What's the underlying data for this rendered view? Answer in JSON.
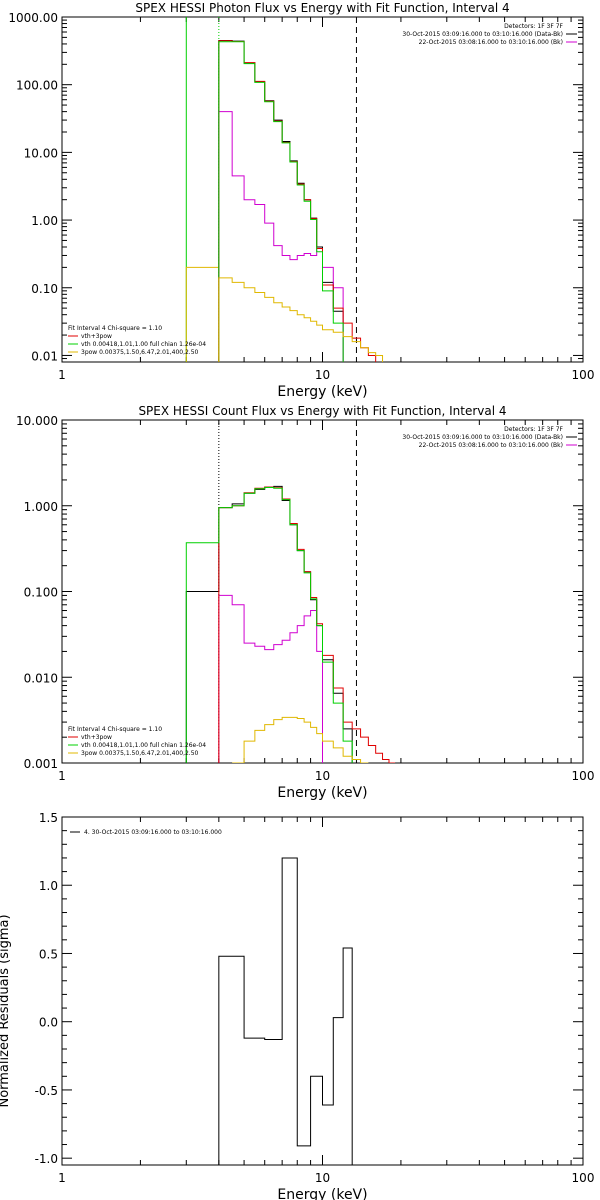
{
  "colors": {
    "black": "#000000",
    "red": "#e00000",
    "green": "#00d000",
    "magenta": "#d000d0",
    "yellow": "#e0b800"
  },
  "chart_data": [
    {
      "type": "line",
      "title": "SPEX HESSI Photon Flux vs Energy with Fit Function, Interval 4",
      "xlabel": "Energy (keV)",
      "ylabel": "",
      "xscale": "log",
      "yscale": "log",
      "xlim": [
        1,
        100
      ],
      "ylim": [
        0.008,
        1000
      ],
      "xticks": [
        {
          "v": 1,
          "label": "1"
        },
        {
          "v": 10,
          "label": "10"
        },
        {
          "v": 100,
          "label": "100"
        }
      ],
      "yticks": [
        {
          "v": 0.01,
          "label": "0.01"
        },
        {
          "v": 0.1,
          "label": "0.10"
        },
        {
          "v": 1,
          "label": "1.00"
        },
        {
          "v": 10,
          "label": "10.00"
        },
        {
          "v": 100,
          "label": "100.00"
        },
        {
          "v": 1000,
          "label": "1000.00"
        }
      ],
      "header_lines": [
        "Detectors: 1F 3F 7F",
        "30-Oct-2015 03:09:16.000 to 03:10:16.000 (Data-Bk)",
        "22-Oct-2015 03:08:16.000 to 03:10:16.000 (Bk)"
      ],
      "fit_legend": {
        "header": "Fit Interval 4   Chi-square = 1.10",
        "items": [
          {
            "label": "vth+3pow",
            "color": "#e00000"
          },
          {
            "label": "vth 0.00418,1.01,1.00  full chian 1.26e-04",
            "color": "#00d000"
          },
          {
            "label": "3pow 0.00375,1.50,6.47,2.01,400,2.50",
            "color": "#e0b800"
          }
        ]
      },
      "vlines": [
        {
          "x": 3.0,
          "color": "#00d000",
          "style": "solid"
        },
        {
          "x": 4.0,
          "color": "#00d000",
          "style": "dotted"
        },
        {
          "x": 13.5,
          "color": "#000000",
          "style": "dashed"
        }
      ],
      "edges": [
        4.0,
        4.5,
        5.0,
        5.5,
        6.0,
        6.5,
        7.0,
        7.5,
        8.0,
        8.5,
        9.0,
        9.5,
        10.0,
        11.0,
        12.0,
        13.0,
        14.0,
        15.0,
        16.0,
        17.0,
        18.0
      ],
      "series": [
        {
          "name": "Data-Bk",
          "color": "#000000",
          "start": 0,
          "values": [
            450,
            440,
            210,
            110,
            58,
            30,
            14.5,
            7.5,
            3.5,
            2.0,
            1.07,
            0.4,
            0.12,
            0.045
          ]
        },
        {
          "color": "#d000d0",
          "start": 0,
          "values": [
            40,
            4.5,
            2.0,
            1.7,
            0.9,
            0.42,
            0.3,
            0.26,
            0.3,
            0.32,
            0.3,
            0.38,
            0.2,
            0.1
          ]
        },
        {
          "color": "#e00000",
          "start": 0,
          "values": [
            445,
            435,
            212,
            112,
            57,
            29,
            14.0,
            7.3,
            3.4,
            2.0,
            1.05,
            0.38,
            0.11,
            0.05,
            0.03,
            0.018,
            0.013,
            0.01
          ]
        },
        {
          "color": "#00d000",
          "start": 0,
          "values": [
            430,
            430,
            205,
            108,
            56,
            28.5,
            13.8,
            7.2,
            3.3,
            1.9,
            1.02,
            0.34,
            0.09,
            0.03
          ]
        },
        {
          "color": "#e0b800",
          "start": 0,
          "values": [
            0.14,
            0.12,
            0.1,
            0.085,
            0.072,
            0.06,
            0.052,
            0.046,
            0.04,
            0.036,
            0.032,
            0.028,
            0.024,
            0.022,
            0.019,
            0.016,
            0.013,
            0.011,
            0.01
          ]
        }
      ],
      "pre_steps": [
        {
          "color": "#e0b800",
          "x0": 3.0,
          "x1": 4.0,
          "y": 0.2
        }
      ]
    },
    {
      "type": "line",
      "title": "SPEX HESSI Count Flux vs Energy with Fit Function, Interval 4",
      "xlabel": "Energy (keV)",
      "ylabel": "",
      "xscale": "log",
      "yscale": "log",
      "xlim": [
        1,
        100
      ],
      "ylim": [
        0.001,
        10
      ],
      "xticks": [
        {
          "v": 1,
          "label": "1"
        },
        {
          "v": 10,
          "label": "10"
        },
        {
          "v": 100,
          "label": "100"
        }
      ],
      "yticks": [
        {
          "v": 0.001,
          "label": "0.001"
        },
        {
          "v": 0.01,
          "label": "0.010"
        },
        {
          "v": 0.1,
          "label": "0.100"
        },
        {
          "v": 1,
          "label": "1.000"
        },
        {
          "v": 10,
          "label": "10.000"
        }
      ],
      "header_lines": [
        "Detectors: 1F 3F 7F",
        "30-Oct-2015 03:09:16.000 to 03:10:16.000 (Data-Bk)",
        "22-Oct-2015 03:08:16.000 to 03:10:16.000 (Bk)"
      ],
      "fit_legend": {
        "header": "Fit Interval 4   Chi-square = 1.10",
        "items": [
          {
            "label": "vth+3pow",
            "color": "#e00000"
          },
          {
            "label": "vth 0.00418,1.01,1.00  full chian 1.26e-04",
            "color": "#00d000"
          },
          {
            "label": "3pow 0.00375,1.50,6.47,2.01,400,2.50",
            "color": "#e0b800"
          }
        ]
      },
      "vlines": [
        {
          "x": 4.0,
          "color": "#000000",
          "style": "dotted"
        },
        {
          "x": 13.5,
          "color": "#000000",
          "style": "dashed"
        }
      ],
      "edges": [
        3.0,
        4.0,
        4.5,
        5.0,
        5.5,
        6.0,
        6.5,
        7.0,
        7.5,
        8.0,
        8.5,
        9.0,
        9.5,
        10.0,
        11.0,
        12.0,
        13.0,
        14.0,
        15.0,
        16.0,
        17.0,
        18.0,
        19.0,
        20.0
      ],
      "series": [
        {
          "name": "Data-Bk",
          "color": "#000000",
          "start": 0,
          "values": [
            0.1,
            0.95,
            1.05,
            1.4,
            1.55,
            1.65,
            1.68,
            1.15,
            0.6,
            0.3,
            0.17,
            0.08,
            0.04,
            0.016,
            0.0065,
            0.0025
          ]
        },
        {
          "color": "#d000d0",
          "start": 1,
          "values": [
            0.09,
            0.07,
            0.025,
            0.023,
            0.021,
            0.024,
            0.027,
            0.033,
            0.04,
            0.052,
            0.06,
            0.02
          ]
        },
        {
          "color": "#e00000",
          "start": 1,
          "values": [
            0.95,
            1.0,
            1.42,
            1.6,
            1.65,
            1.62,
            1.2,
            0.62,
            0.31,
            0.17,
            0.085,
            0.042,
            0.018,
            0.0075,
            0.003,
            0.0025,
            0.002,
            0.0016,
            0.0013,
            0.0011,
            0.001
          ]
        },
        {
          "color": "#00d000",
          "start": 0,
          "values": [
            0.37,
            0.95,
            1.0,
            1.4,
            1.58,
            1.63,
            1.6,
            1.18,
            0.6,
            0.3,
            0.165,
            0.082,
            0.04,
            0.015,
            0.005,
            0.0018
          ]
        },
        {
          "color": "#e0b800",
          "start": 2,
          "values": [
            0.001,
            0.0018,
            0.0024,
            0.0028,
            0.0032,
            0.0034,
            0.0034,
            0.0033,
            0.003,
            0.0026,
            0.0022,
            0.0018,
            0.0015,
            0.0012,
            0.0011,
            0.001
          ]
        }
      ],
      "pre_steps": []
    },
    {
      "type": "line",
      "title": "",
      "xlabel": "Energy (keV)",
      "ylabel": "Normalized Residuals (sigma)",
      "xscale": "log",
      "yscale": "linear",
      "xlim": [
        1,
        100
      ],
      "ylim": [
        -1.05,
        1.5
      ],
      "xticks": [
        {
          "v": 1,
          "label": "1"
        },
        {
          "v": 10,
          "label": "10"
        },
        {
          "v": 100,
          "label": "100"
        }
      ],
      "yticks": [
        {
          "v": -1.0,
          "label": "-1.0"
        },
        {
          "v": -0.5,
          "label": "-0.5"
        },
        {
          "v": 0.0,
          "label": "0.0"
        },
        {
          "v": 0.5,
          "label": "0.5"
        },
        {
          "v": 1.0,
          "label": "1.0"
        },
        {
          "v": 1.5,
          "label": "1.5"
        }
      ],
      "legend": "4. 30-Oct-2015 03:09:16.000 to 03:10:16.000",
      "edges": [
        4.0,
        5.0,
        6.0,
        7.0,
        8.0,
        9.0,
        10.0,
        11.0,
        12.0,
        13.0,
        13.6
      ],
      "series": [
        {
          "name": "4. 30-Oct-2015 03:09:16.000 to 03:10:16.000",
          "color": "#000000",
          "start": 0,
          "values": [
            0.48,
            -0.12,
            -0.13,
            1.2,
            -0.91,
            -0.4,
            -0.61,
            0.03,
            0.54
          ]
        }
      ]
    }
  ]
}
